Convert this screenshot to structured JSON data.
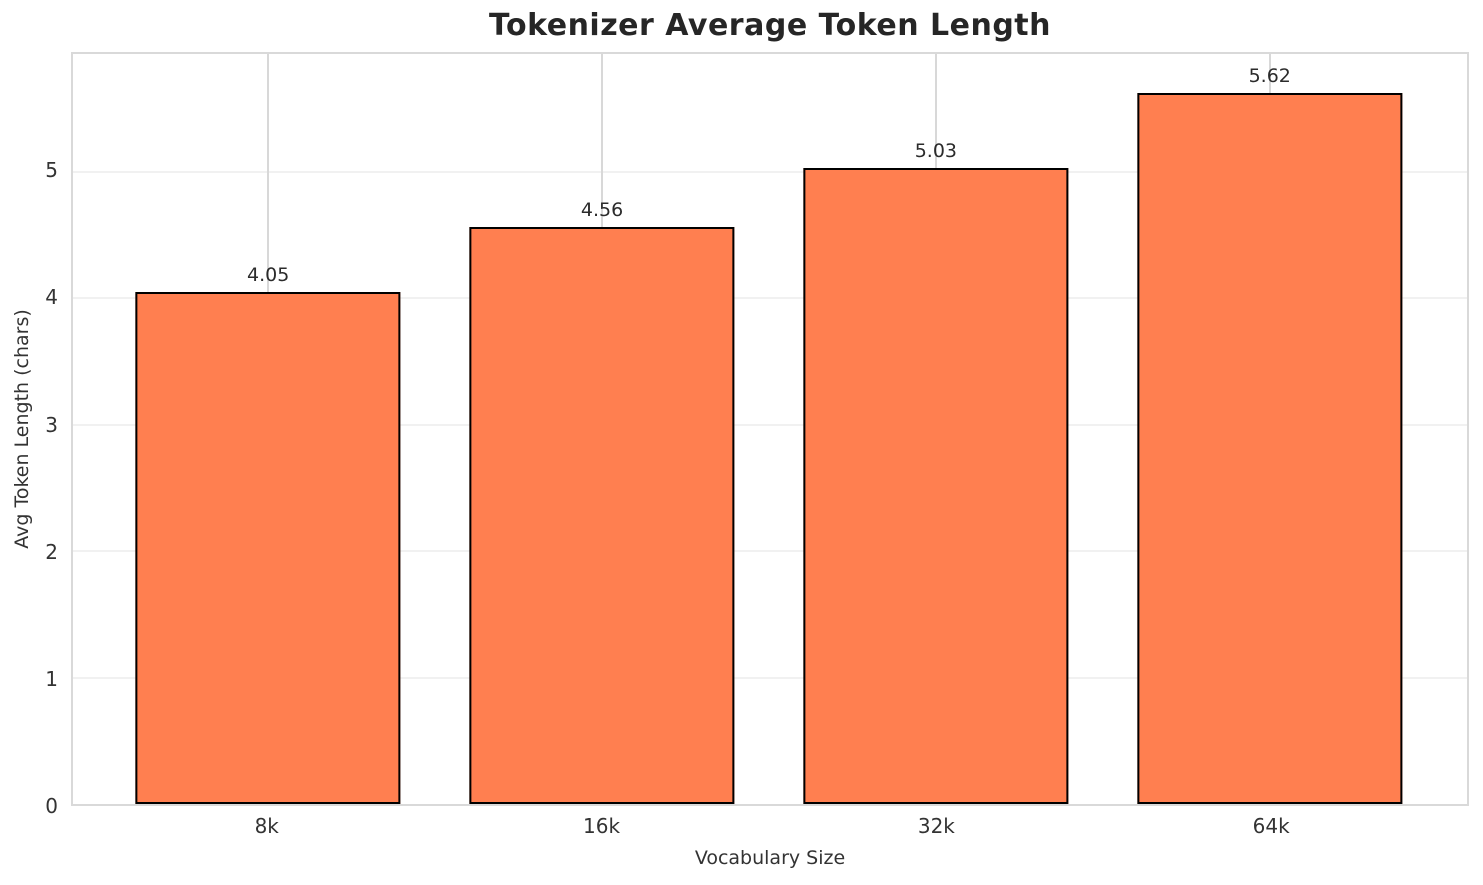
{
  "chart_data": {
    "type": "bar",
    "title": "Tokenizer Average Token Length",
    "xlabel": "Vocabulary Size",
    "ylabel": "Avg Token Length (chars)",
    "categories": [
      "8k",
      "16k",
      "32k",
      "64k"
    ],
    "values": [
      4.05,
      4.56,
      5.03,
      5.62
    ],
    "value_labels": [
      "4.05",
      "4.56",
      "5.03",
      "5.62"
    ],
    "yticks": [
      "0",
      "1",
      "2",
      "3",
      "4",
      "5"
    ],
    "ylim": [
      0,
      5.93
    ],
    "grid": true,
    "legend": false,
    "bar_color": "#FF7F50",
    "bar_edge_color": "#000000"
  }
}
